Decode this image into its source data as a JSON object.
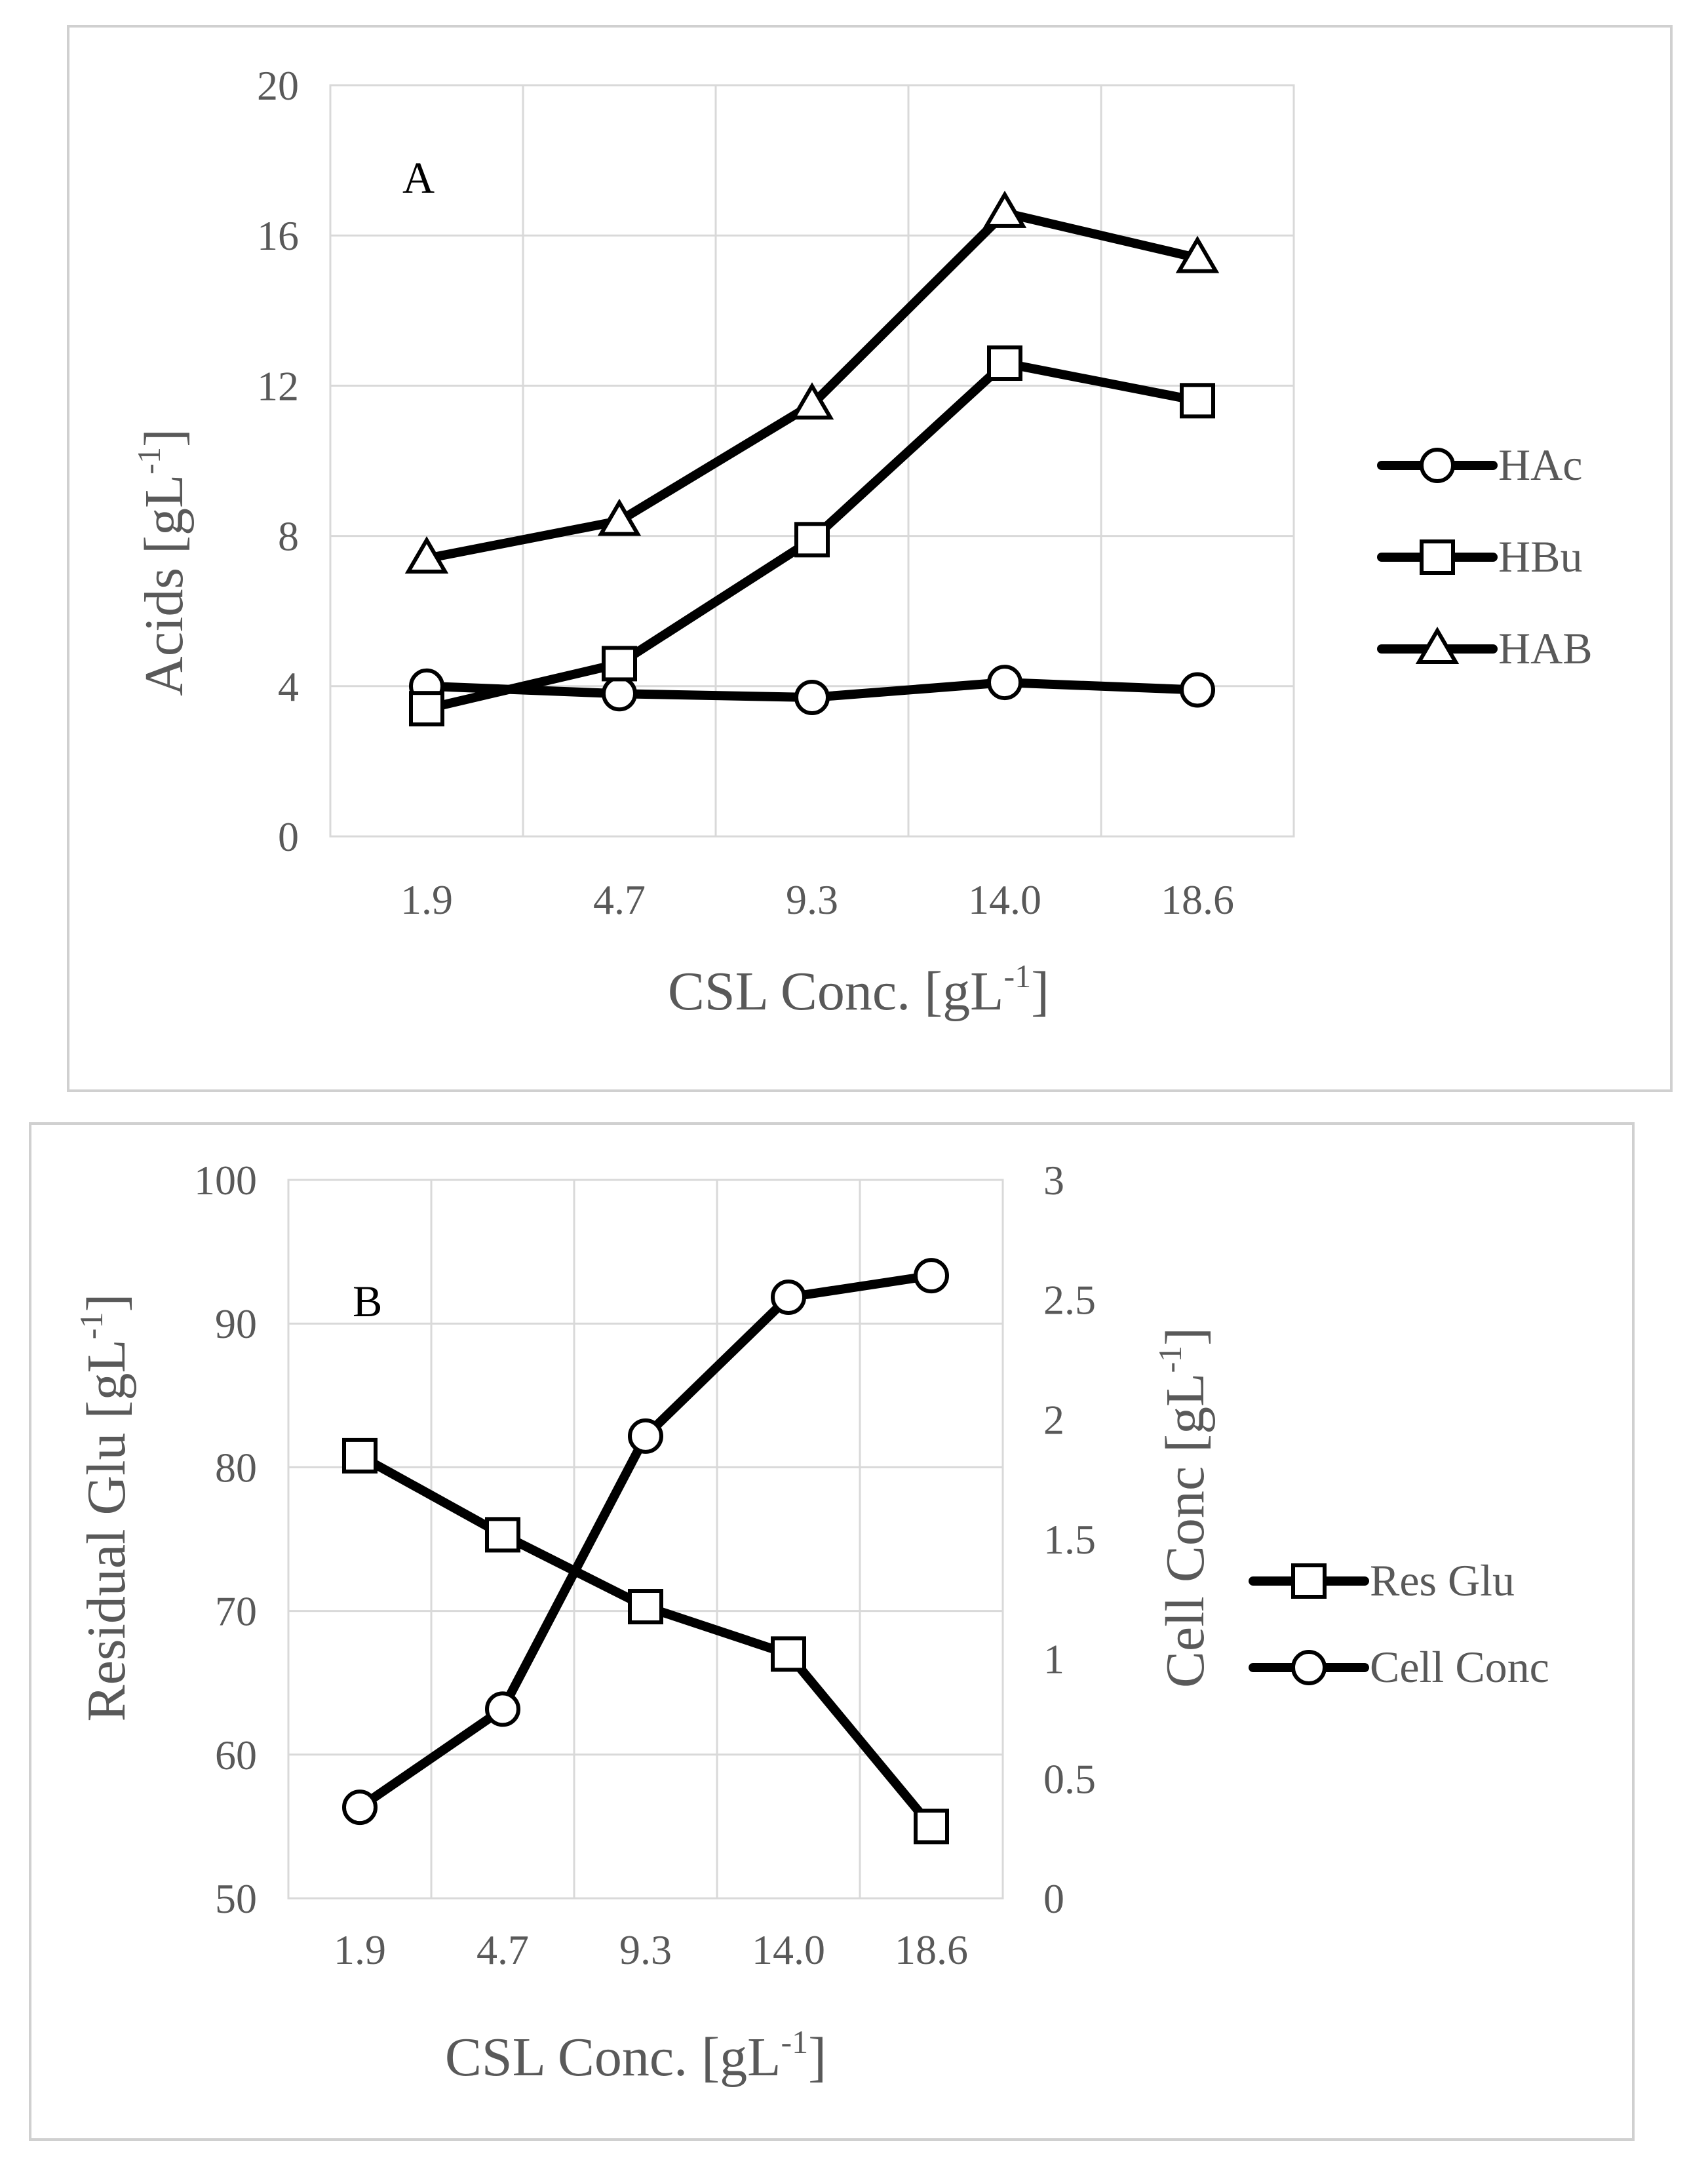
{
  "chart_data": [
    {
      "type": "line",
      "panel_label": "A",
      "categories": [
        "1.9",
        "4.7",
        "9.3",
        "14.0",
        "18.6"
      ],
      "y_ticks": [
        "0",
        "4",
        "8",
        "12",
        "16",
        "20"
      ],
      "ylim": [
        0,
        20
      ],
      "xlabel_main": "CSL Conc. [gL",
      "xlabel_sup": "-1",
      "xlabel_end": "]",
      "ylabel_main": "Acids [gL",
      "ylabel_sup": "-1",
      "ylabel_end": "]",
      "grid": true,
      "legend_position": "right",
      "series": [
        {
          "name": "HAc",
          "marker": "circle",
          "values": [
            4.0,
            3.8,
            3.7,
            4.1,
            3.9
          ]
        },
        {
          "name": "HBu",
          "marker": "square",
          "values": [
            3.4,
            4.6,
            7.9,
            12.6,
            11.6
          ]
        },
        {
          "name": "HAB",
          "marker": "triangle",
          "values": [
            7.4,
            8.4,
            11.5,
            16.6,
            15.4
          ]
        }
      ]
    },
    {
      "type": "line",
      "panel_label": "B",
      "categories": [
        "1.9",
        "4.7",
        "9.3",
        "14.0",
        "18.6"
      ],
      "y_ticks": [
        "50",
        "60",
        "70",
        "80",
        "90",
        "100"
      ],
      "ylim": [
        50,
        100
      ],
      "y2_ticks": [
        "0",
        "0.5",
        "1",
        "1.5",
        "2",
        "2.5",
        "3"
      ],
      "y2lim": [
        0,
        3
      ],
      "xlabel_main": "CSL Conc. [gL",
      "xlabel_sup": "-1",
      "xlabel_end": "]",
      "ylabel_main": "Residual Glu [gL",
      "ylabel_sup": "-1",
      "ylabel_end": "]",
      "y2label_main": "Cell Conc [gL",
      "y2label_sup": "-1",
      "y2label_end": "]",
      "grid": true,
      "legend_position": "right",
      "series": [
        {
          "name": "Res Glu",
          "marker": "square",
          "axis": "left",
          "values": [
            80.8,
            75.3,
            70.3,
            67.0,
            55.0
          ]
        },
        {
          "name": "Cell Conc",
          "marker": "circle",
          "axis": "right",
          "values": [
            0.38,
            0.79,
            1.93,
            2.51,
            2.6
          ]
        }
      ]
    }
  ]
}
